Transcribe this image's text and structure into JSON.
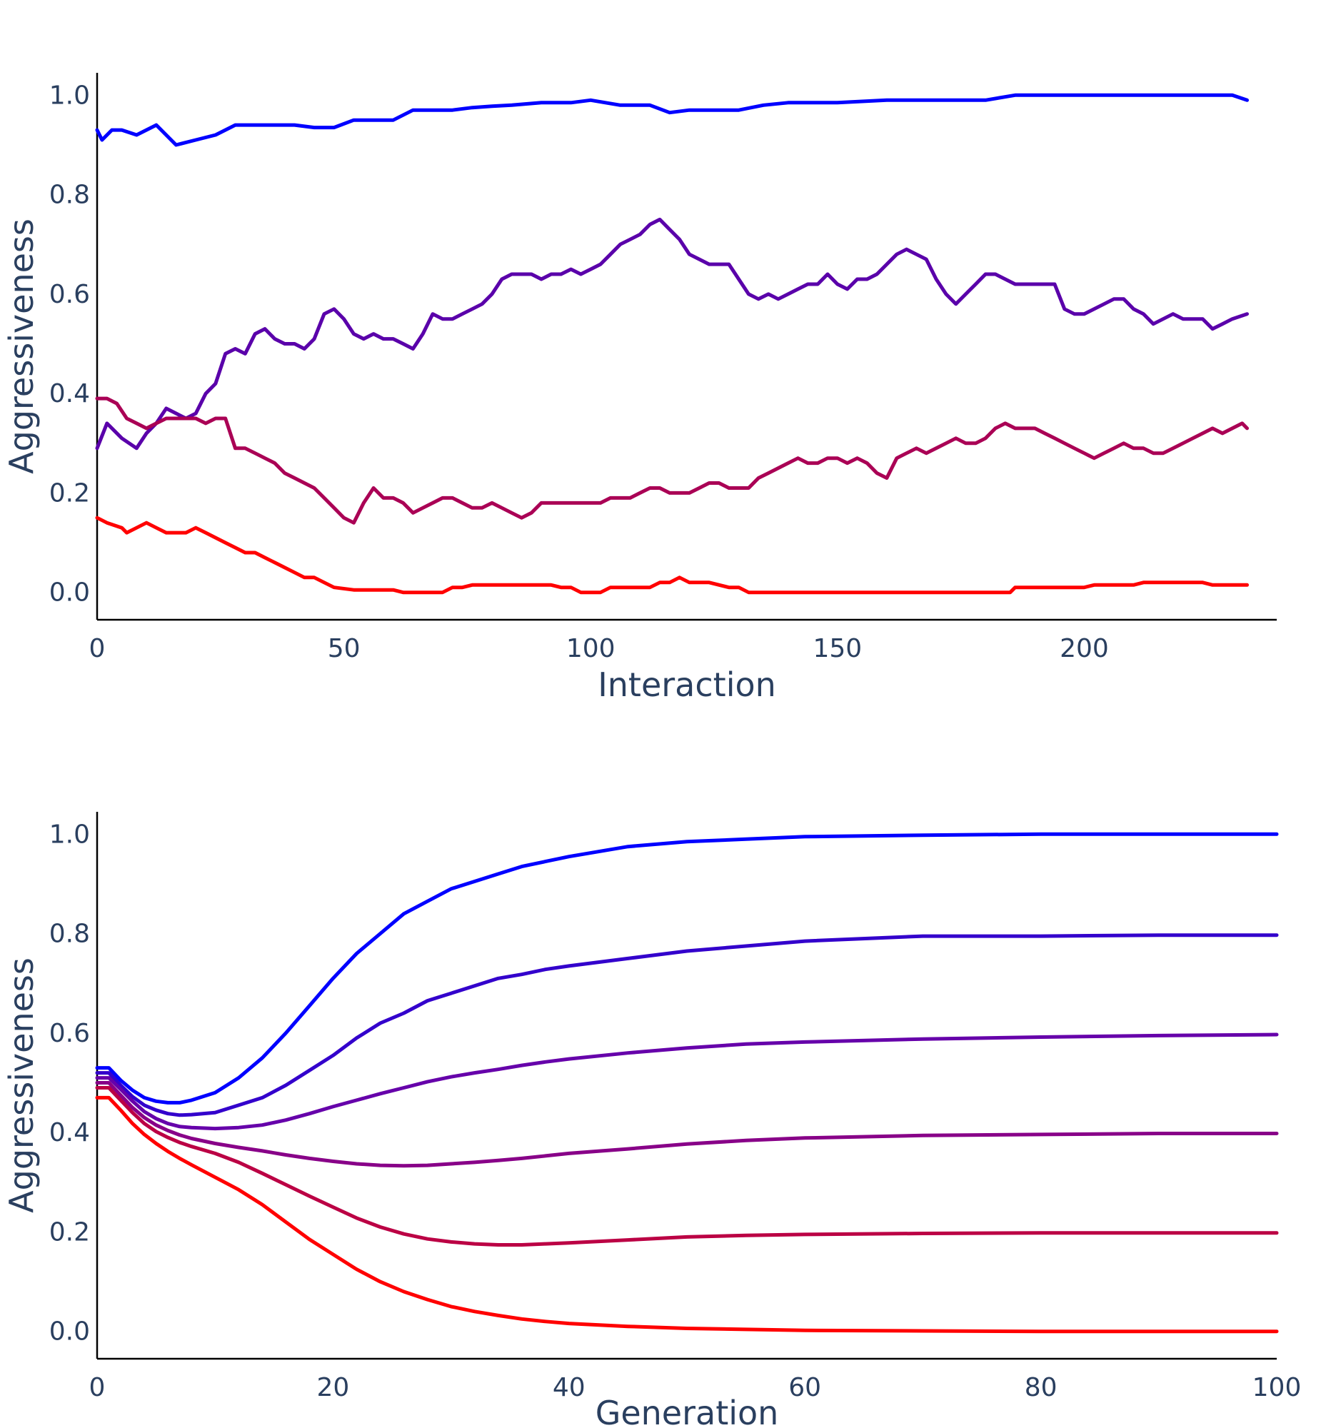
{
  "chart_data": [
    {
      "type": "line",
      "xlabel": "Interaction",
      "ylabel": "Aggressiveness",
      "xlim": [
        0,
        239
      ],
      "ylim": [
        -0.055,
        1.045
      ],
      "xticks": [
        0,
        50,
        100,
        150,
        200
      ],
      "xtick_labels": [
        "0",
        "50",
        "100",
        "150",
        "200"
      ],
      "yticks": [
        0.0,
        0.2,
        0.4,
        0.6,
        0.8,
        1.0
      ],
      "ytick_labels": [
        "0.0",
        "0.2",
        "0.4",
        "0.6",
        "0.8",
        "1.0"
      ],
      "grid": false,
      "legend": "none",
      "series": [
        {
          "color": "#0000ff",
          "x": [
            0,
            1,
            3,
            5,
            8,
            12,
            16,
            20,
            24,
            28,
            32,
            36,
            40,
            44,
            48,
            52,
            56,
            60,
            64,
            68,
            72,
            76,
            80,
            84,
            90,
            96,
            100,
            106,
            112,
            116,
            120,
            125,
            130,
            135,
            140,
            150,
            160,
            170,
            180,
            186,
            192,
            200,
            210,
            220,
            230,
            233
          ],
          "y": [
            0.93,
            0.91,
            0.93,
            0.93,
            0.92,
            0.94,
            0.9,
            0.91,
            0.92,
            0.94,
            0.94,
            0.94,
            0.94,
            0.935,
            0.935,
            0.95,
            0.95,
            0.95,
            0.97,
            0.97,
            0.97,
            0.975,
            0.978,
            0.98,
            0.985,
            0.985,
            0.99,
            0.98,
            0.98,
            0.965,
            0.97,
            0.97,
            0.97,
            0.98,
            0.985,
            0.985,
            0.99,
            0.99,
            0.99,
            1.0,
            1.0,
            1.0,
            1.0,
            1.0,
            1.0,
            0.99
          ]
        },
        {
          "color": "#5a00aa",
          "x": [
            0,
            2,
            5,
            8,
            10,
            12,
            14,
            16,
            18,
            20,
            22,
            24,
            26,
            28,
            30,
            32,
            34,
            36,
            38,
            40,
            42,
            44,
            46,
            48,
            50,
            52,
            54,
            56,
            58,
            60,
            62,
            64,
            66,
            68,
            70,
            72,
            74,
            76,
            78,
            80,
            82,
            84,
            86,
            88,
            90,
            92,
            94,
            96,
            98,
            100,
            102,
            104,
            106,
            108,
            110,
            112,
            114,
            116,
            118,
            120,
            122,
            124,
            126,
            128,
            130,
            132,
            134,
            136,
            138,
            140,
            142,
            144,
            146,
            148,
            150,
            152,
            154,
            156,
            158,
            160,
            162,
            164,
            166,
            168,
            170,
            172,
            174,
            176,
            178,
            180,
            182,
            184,
            186,
            188,
            190,
            192,
            194,
            196,
            198,
            200,
            202,
            204,
            206,
            208,
            210,
            212,
            214,
            216,
            218,
            220,
            222,
            224,
            226,
            228,
            230,
            233
          ],
          "y": [
            0.29,
            0.34,
            0.31,
            0.29,
            0.32,
            0.34,
            0.37,
            0.36,
            0.35,
            0.36,
            0.4,
            0.42,
            0.48,
            0.49,
            0.48,
            0.52,
            0.53,
            0.51,
            0.5,
            0.5,
            0.49,
            0.51,
            0.56,
            0.57,
            0.55,
            0.52,
            0.51,
            0.52,
            0.51,
            0.51,
            0.5,
            0.49,
            0.52,
            0.56,
            0.55,
            0.55,
            0.56,
            0.57,
            0.58,
            0.6,
            0.63,
            0.64,
            0.64,
            0.64,
            0.63,
            0.64,
            0.64,
            0.65,
            0.64,
            0.65,
            0.66,
            0.68,
            0.7,
            0.71,
            0.72,
            0.74,
            0.75,
            0.73,
            0.71,
            0.68,
            0.67,
            0.66,
            0.66,
            0.66,
            0.63,
            0.6,
            0.59,
            0.6,
            0.59,
            0.6,
            0.61,
            0.62,
            0.62,
            0.64,
            0.62,
            0.61,
            0.63,
            0.63,
            0.64,
            0.66,
            0.68,
            0.69,
            0.68,
            0.67,
            0.63,
            0.6,
            0.58,
            0.6,
            0.62,
            0.64,
            0.64,
            0.63,
            0.62,
            0.62,
            0.62,
            0.62,
            0.62,
            0.57,
            0.56,
            0.56,
            0.57,
            0.58,
            0.59,
            0.59,
            0.57,
            0.56,
            0.54,
            0.55,
            0.56,
            0.55,
            0.55,
            0.55,
            0.53,
            0.54,
            0.55,
            0.56
          ]
        },
        {
          "color": "#aa0055",
          "x": [
            0,
            2,
            4,
            6,
            8,
            10,
            12,
            14,
            16,
            18,
            20,
            22,
            24,
            26,
            28,
            30,
            32,
            34,
            36,
            38,
            40,
            42,
            44,
            46,
            48,
            50,
            52,
            54,
            56,
            58,
            60,
            62,
            64,
            66,
            68,
            70,
            72,
            74,
            76,
            78,
            80,
            82,
            84,
            86,
            88,
            90,
            92,
            94,
            96,
            98,
            100,
            102,
            104,
            106,
            108,
            110,
            112,
            114,
            116,
            118,
            120,
            122,
            124,
            126,
            128,
            130,
            132,
            134,
            136,
            138,
            140,
            142,
            144,
            146,
            148,
            150,
            152,
            154,
            156,
            158,
            160,
            162,
            164,
            166,
            168,
            170,
            172,
            174,
            176,
            178,
            180,
            182,
            184,
            186,
            188,
            190,
            192,
            194,
            196,
            198,
            200,
            202,
            204,
            206,
            208,
            210,
            212,
            214,
            216,
            218,
            220,
            222,
            224,
            226,
            228,
            230,
            232,
            233
          ],
          "y": [
            0.39,
            0.39,
            0.38,
            0.35,
            0.34,
            0.33,
            0.34,
            0.35,
            0.35,
            0.35,
            0.35,
            0.34,
            0.35,
            0.35,
            0.29,
            0.29,
            0.28,
            0.27,
            0.26,
            0.24,
            0.23,
            0.22,
            0.21,
            0.19,
            0.17,
            0.15,
            0.14,
            0.18,
            0.21,
            0.19,
            0.19,
            0.18,
            0.16,
            0.17,
            0.18,
            0.19,
            0.19,
            0.18,
            0.17,
            0.17,
            0.18,
            0.17,
            0.16,
            0.15,
            0.16,
            0.18,
            0.18,
            0.18,
            0.18,
            0.18,
            0.18,
            0.18,
            0.19,
            0.19,
            0.19,
            0.2,
            0.21,
            0.21,
            0.2,
            0.2,
            0.2,
            0.21,
            0.22,
            0.22,
            0.21,
            0.21,
            0.21,
            0.23,
            0.24,
            0.25,
            0.26,
            0.27,
            0.26,
            0.26,
            0.27,
            0.27,
            0.26,
            0.27,
            0.26,
            0.24,
            0.23,
            0.27,
            0.28,
            0.29,
            0.28,
            0.29,
            0.3,
            0.31,
            0.3,
            0.3,
            0.31,
            0.33,
            0.34,
            0.33,
            0.33,
            0.33,
            0.32,
            0.31,
            0.3,
            0.29,
            0.28,
            0.27,
            0.28,
            0.29,
            0.3,
            0.29,
            0.29,
            0.28,
            0.28,
            0.29,
            0.3,
            0.31,
            0.32,
            0.33,
            0.32,
            0.33,
            0.34,
            0.33
          ]
        },
        {
          "color": "#ff0000",
          "x": [
            0,
            2,
            5,
            6,
            8,
            10,
            12,
            14,
            16,
            18,
            20,
            22,
            24,
            26,
            28,
            30,
            32,
            34,
            36,
            38,
            40,
            42,
            44,
            46,
            48,
            52,
            56,
            60,
            62,
            64,
            66,
            68,
            70,
            72,
            74,
            76,
            80,
            84,
            88,
            92,
            94,
            96,
            98,
            100,
            102,
            104,
            106,
            108,
            110,
            112,
            114,
            116,
            118,
            120,
            124,
            128,
            130,
            132,
            134,
            140,
            160,
            180,
            185,
            186,
            200,
            202,
            210,
            212,
            220,
            224,
            226,
            230,
            233
          ],
          "y": [
            0.15,
            0.14,
            0.13,
            0.12,
            0.13,
            0.14,
            0.13,
            0.12,
            0.12,
            0.12,
            0.13,
            0.12,
            0.11,
            0.1,
            0.09,
            0.08,
            0.08,
            0.07,
            0.06,
            0.05,
            0.04,
            0.03,
            0.03,
            0.02,
            0.01,
            0.005,
            0.005,
            0.005,
            0.0,
            0.0,
            0.0,
            0.0,
            0.0,
            0.01,
            0.01,
            0.015,
            0.015,
            0.015,
            0.015,
            0.015,
            0.01,
            0.01,
            0.0,
            0.0,
            0.0,
            0.01,
            0.01,
            0.01,
            0.01,
            0.01,
            0.02,
            0.02,
            0.03,
            0.02,
            0.02,
            0.01,
            0.01,
            0.0,
            0.0,
            0.0,
            0.0,
            0.0,
            0.0,
            0.01,
            0.01,
            0.015,
            0.015,
            0.02,
            0.02,
            0.02,
            0.015,
            0.015,
            0.015
          ]
        }
      ]
    },
    {
      "type": "line",
      "xlabel": "Generation",
      "ylabel": "Aggressiveness",
      "xlim": [
        0,
        100
      ],
      "ylim": [
        -0.055,
        1.045
      ],
      "xticks": [
        0,
        20,
        40,
        60,
        80,
        100
      ],
      "xtick_labels": [
        "0",
        "20",
        "40",
        "60",
        "80",
        "100"
      ],
      "yticks": [
        0.0,
        0.2,
        0.4,
        0.6,
        0.8,
        1.0
      ],
      "ytick_labels": [
        "0.0",
        "0.2",
        "0.4",
        "0.6",
        "0.8",
        "1.0"
      ],
      "grid": false,
      "legend": "none",
      "x": [
        0,
        1,
        2,
        3,
        4,
        5,
        6,
        7,
        8,
        10,
        12,
        14,
        16,
        18,
        20,
        22,
        24,
        26,
        28,
        30,
        32,
        34,
        36,
        38,
        40,
        45,
        50,
        55,
        60,
        70,
        80,
        90,
        100
      ],
      "series": [
        {
          "color": "#0000ff",
          "values": [
            0.53,
            0.53,
            0.505,
            0.485,
            0.47,
            0.463,
            0.46,
            0.46,
            0.465,
            0.48,
            0.51,
            0.55,
            0.6,
            0.655,
            0.71,
            0.76,
            0.8,
            0.84,
            0.865,
            0.89,
            0.905,
            0.92,
            0.935,
            0.945,
            0.955,
            0.975,
            0.985,
            0.99,
            0.995,
            0.998,
            1.0,
            1.0,
            1.0
          ]
        },
        {
          "color": "#3300cc",
          "values": [
            0.52,
            0.52,
            0.495,
            0.472,
            0.455,
            0.445,
            0.438,
            0.435,
            0.436,
            0.44,
            0.455,
            0.47,
            0.495,
            0.525,
            0.555,
            0.59,
            0.62,
            0.64,
            0.665,
            0.68,
            0.695,
            0.71,
            0.718,
            0.728,
            0.735,
            0.75,
            0.765,
            0.775,
            0.785,
            0.795,
            0.795,
            0.797,
            0.797
          ]
        },
        {
          "color": "#6600aa",
          "values": [
            0.51,
            0.51,
            0.487,
            0.463,
            0.442,
            0.428,
            0.418,
            0.412,
            0.41,
            0.408,
            0.41,
            0.415,
            0.425,
            0.438,
            0.452,
            0.465,
            0.478,
            0.49,
            0.502,
            0.512,
            0.52,
            0.527,
            0.535,
            0.542,
            0.548,
            0.56,
            0.57,
            0.578,
            0.582,
            0.588,
            0.592,
            0.595,
            0.597
          ]
        },
        {
          "color": "#880088",
          "values": [
            0.5,
            0.5,
            0.475,
            0.45,
            0.43,
            0.415,
            0.404,
            0.395,
            0.388,
            0.378,
            0.37,
            0.363,
            0.355,
            0.348,
            0.342,
            0.337,
            0.334,
            0.333,
            0.334,
            0.337,
            0.34,
            0.344,
            0.348,
            0.353,
            0.358,
            0.367,
            0.377,
            0.384,
            0.389,
            0.394,
            0.396,
            0.398,
            0.398
          ]
        },
        {
          "color": "#bb0044",
          "values": [
            0.49,
            0.49,
            0.465,
            0.44,
            0.418,
            0.402,
            0.39,
            0.38,
            0.372,
            0.358,
            0.34,
            0.318,
            0.295,
            0.272,
            0.25,
            0.228,
            0.21,
            0.196,
            0.186,
            0.18,
            0.176,
            0.174,
            0.174,
            0.176,
            0.178,
            0.184,
            0.19,
            0.193,
            0.195,
            0.197,
            0.198,
            0.198,
            0.198
          ]
        },
        {
          "color": "#ff0000",
          "values": [
            0.47,
            0.47,
            0.445,
            0.418,
            0.396,
            0.378,
            0.362,
            0.348,
            0.335,
            0.31,
            0.285,
            0.255,
            0.22,
            0.185,
            0.155,
            0.125,
            0.1,
            0.08,
            0.064,
            0.05,
            0.04,
            0.032,
            0.025,
            0.02,
            0.016,
            0.01,
            0.006,
            0.004,
            0.002,
            0.001,
            0.0,
            0.0,
            0.0
          ]
        }
      ]
    }
  ]
}
